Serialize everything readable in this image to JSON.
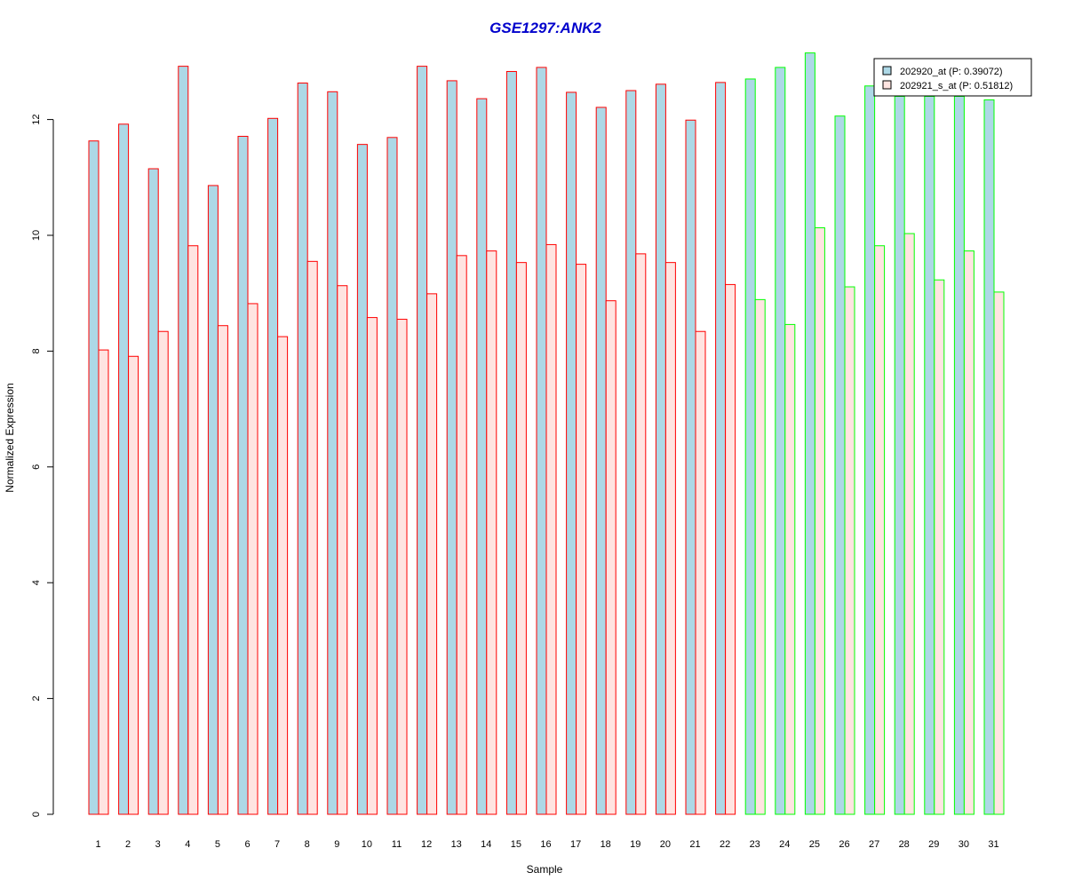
{
  "chart_data": {
    "type": "bar",
    "title": "GSE1297:ANK2",
    "title_color": "#0000CC",
    "xlabel": "Sample",
    "ylabel": "Normalized Expression",
    "ylim": [
      0,
      13.2
    ],
    "yticks": [
      0,
      2,
      4,
      6,
      8,
      10,
      12
    ],
    "grid": false,
    "legend_position": "top-right",
    "categories": [
      "1",
      "2",
      "3",
      "4",
      "5",
      "6",
      "7",
      "8",
      "9",
      "10",
      "11",
      "12",
      "13",
      "14",
      "15",
      "16",
      "17",
      "18",
      "19",
      "20",
      "21",
      "22",
      "23",
      "24",
      "25",
      "26",
      "27",
      "28",
      "29",
      "30",
      "31"
    ],
    "group_border_colors": [
      "#FF0000",
      "#FF0000",
      "#FF0000",
      "#FF0000",
      "#FF0000",
      "#FF0000",
      "#FF0000",
      "#FF0000",
      "#FF0000",
      "#FF0000",
      "#FF0000",
      "#FF0000",
      "#FF0000",
      "#FF0000",
      "#FF0000",
      "#FF0000",
      "#FF0000",
      "#FF0000",
      "#FF0000",
      "#FF0000",
      "#FF0000",
      "#FF0000",
      "#00FF00",
      "#00FF00",
      "#00FF00",
      "#00FF00",
      "#00FF00",
      "#00FF00",
      "#00FF00",
      "#00FF00",
      "#00FF00"
    ],
    "series": [
      {
        "name": "202920_at (P: 0.39072)",
        "fill": "#ADD8E6",
        "values": [
          11.63,
          11.92,
          11.15,
          12.92,
          10.86,
          11.71,
          12.02,
          12.63,
          12.48,
          11.57,
          11.69,
          12.92,
          12.67,
          12.36,
          12.83,
          12.9,
          12.47,
          12.21,
          12.5,
          12.61,
          11.99,
          12.64,
          12.7,
          12.9,
          13.15,
          12.06,
          12.58,
          12.4,
          12.4,
          12.4,
          12.34
        ]
      },
      {
        "name": "202921_s_at (P: 0.51812)",
        "fill": "#FFE4E1",
        "values": [
          8.02,
          7.91,
          8.34,
          9.82,
          8.44,
          8.82,
          8.25,
          9.55,
          9.13,
          8.58,
          8.55,
          8.99,
          9.65,
          9.73,
          9.53,
          9.84,
          9.5,
          8.87,
          9.68,
          9.53,
          8.34,
          9.15,
          8.89,
          8.46,
          10.13,
          9.11,
          9.82,
          10.03,
          9.23,
          9.73,
          9.02
        ]
      }
    ]
  }
}
